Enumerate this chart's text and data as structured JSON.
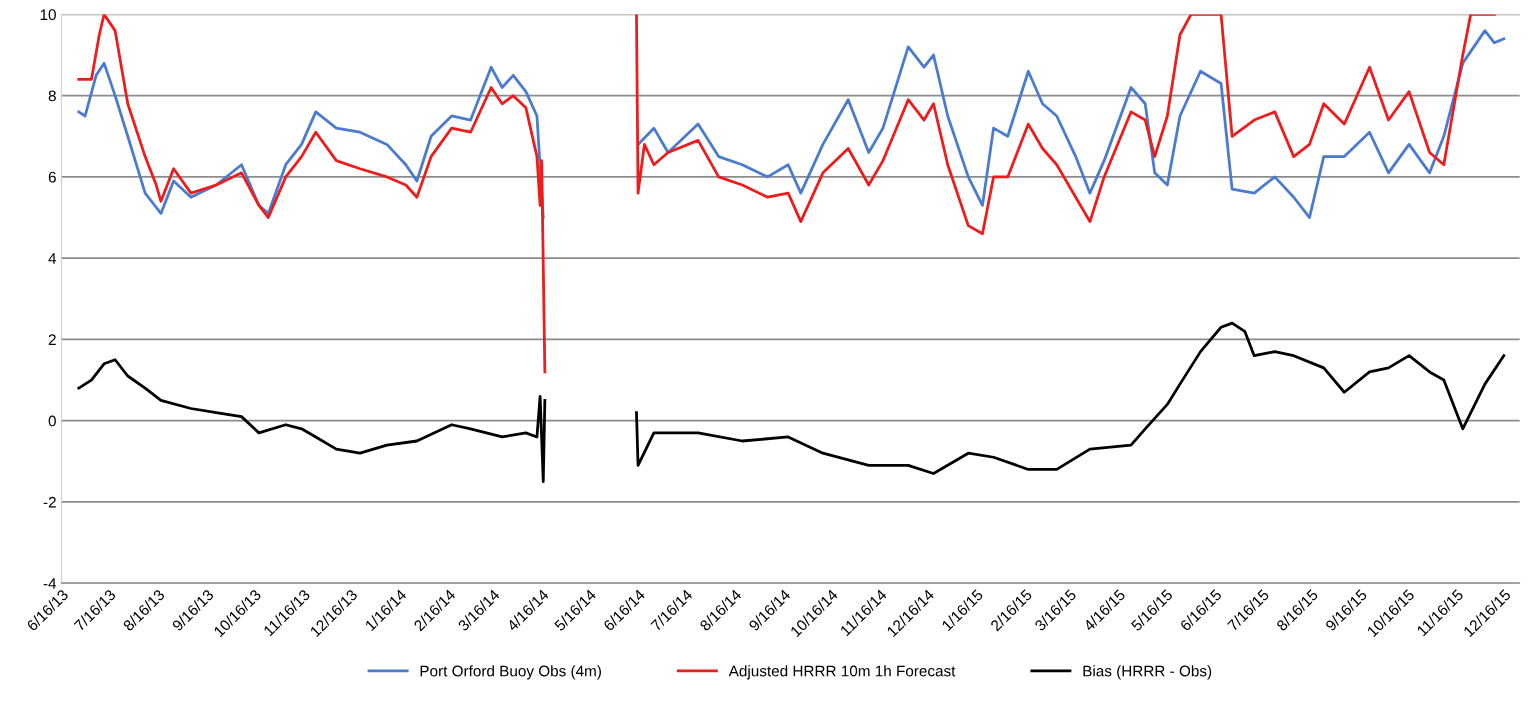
{
  "chart_data": {
    "type": "line",
    "xlim": [
      "2013-06-16",
      "2015-12-26"
    ],
    "xticks": [
      {
        "value": "2013-06-16",
        "label": "6/16/13"
      },
      {
        "value": "2013-07-16",
        "label": "7/16/13"
      },
      {
        "value": "2013-08-16",
        "label": "8/16/13"
      },
      {
        "value": "2013-09-16",
        "label": "9/16/13"
      },
      {
        "value": "2013-10-16",
        "label": "10/16/13"
      },
      {
        "value": "2013-11-16",
        "label": "11/16/13"
      },
      {
        "value": "2013-12-16",
        "label": "12/16/13"
      },
      {
        "value": "2014-01-16",
        "label": "1/16/14"
      },
      {
        "value": "2014-02-16",
        "label": "2/16/14"
      },
      {
        "value": "2014-03-16",
        "label": "3/16/14"
      },
      {
        "value": "2014-04-16",
        "label": "4/16/14"
      },
      {
        "value": "2014-05-16",
        "label": "5/16/14"
      },
      {
        "value": "2014-06-16",
        "label": "6/16/14"
      },
      {
        "value": "2014-07-16",
        "label": "7/16/14"
      },
      {
        "value": "2014-08-16",
        "label": "8/16/14"
      },
      {
        "value": "2014-09-16",
        "label": "9/16/14"
      },
      {
        "value": "2014-10-16",
        "label": "10/16/14"
      },
      {
        "value": "2014-11-16",
        "label": "11/16/14"
      },
      {
        "value": "2014-12-16",
        "label": "12/16/14"
      },
      {
        "value": "2015-01-16",
        "label": "1/16/15"
      },
      {
        "value": "2015-02-16",
        "label": "2/16/15"
      },
      {
        "value": "2015-03-16",
        "label": "3/16/15"
      },
      {
        "value": "2015-04-16",
        "label": "4/16/15"
      },
      {
        "value": "2015-05-16",
        "label": "5/16/15"
      },
      {
        "value": "2015-06-16",
        "label": "6/16/15"
      },
      {
        "value": "2015-07-16",
        "label": "7/16/15"
      },
      {
        "value": "2015-08-16",
        "label": "8/16/15"
      },
      {
        "value": "2015-09-16",
        "label": "9/16/15"
      },
      {
        "value": "2015-10-16",
        "label": "10/16/15"
      },
      {
        "value": "2015-11-16",
        "label": "11/16/15"
      },
      {
        "value": "2015-12-16",
        "label": "12/16/15"
      }
    ],
    "ylim": [
      -4,
      10
    ],
    "yticks": [
      -4,
      -2,
      0,
      2,
      4,
      6,
      8,
      10
    ],
    "grid": "y",
    "legend": "bottom",
    "marker": "none",
    "line_style": "solid",
    "series": [
      {
        "name": "Port Orford Buoy Obs (4m)",
        "color": "#4a7bd0",
        "x": [
          "2013-06-27",
          "2013-07-01",
          "2013-07-08",
          "2013-07-13",
          "2013-07-20",
          "2013-07-28",
          "2013-08-08",
          "2013-08-18",
          "2013-08-26",
          "2013-09-06",
          "2013-09-22",
          "2013-10-08",
          "2013-10-19",
          "2013-10-25",
          "2013-11-05",
          "2013-11-15",
          "2013-11-24",
          "2013-12-07",
          "2013-12-22",
          "2014-01-08",
          "2014-01-20",
          "2014-01-27",
          "2014-02-05",
          "2014-02-18",
          "2014-03-02",
          "2014-03-15",
          "2014-03-22",
          "2014-03-29",
          "2014-04-06",
          "2014-04-13",
          "2014-04-17",
          "2014-05-16",
          "2014-06-16",
          "2014-06-26",
          "2014-07-05",
          "2014-07-24",
          "2014-08-06",
          "2014-08-21",
          "2014-09-06",
          "2014-09-19",
          "2014-09-27",
          "2014-10-11",
          "2014-10-27",
          "2014-11-09",
          "2014-11-18",
          "2014-12-04",
          "2014-12-14",
          "2014-12-20",
          "2014-12-29",
          "2015-01-11",
          "2015-01-20",
          "2015-01-27",
          "2015-02-05",
          "2015-02-18",
          "2015-02-27",
          "2015-03-08",
          "2015-03-20",
          "2015-03-29",
          "2015-04-07",
          "2015-04-24",
          "2015-05-03",
          "2015-05-09",
          "2015-05-17",
          "2015-05-25",
          "2015-06-07",
          "2015-06-20",
          "2015-06-27",
          "2015-07-11",
          "2015-07-24",
          "2015-08-05",
          "2015-08-15",
          "2015-08-24",
          "2015-09-06",
          "2015-09-22",
          "2015-10-04",
          "2015-10-17",
          "2015-10-30",
          "2015-11-08",
          "2015-11-20",
          "2015-12-04",
          "2015-12-10",
          "2015-12-16"
        ],
        "values": [
          7.6,
          7.5,
          8.5,
          8.8,
          8.0,
          7.0,
          5.6,
          5.1,
          5.9,
          5.5,
          5.8,
          6.3,
          5.3,
          5.1,
          6.3,
          6.8,
          7.6,
          7.2,
          7.1,
          6.8,
          6.3,
          5.9,
          7.0,
          7.5,
          7.4,
          8.7,
          8.2,
          8.5,
          8.1,
          7.5,
          5.0,
          null,
          6.8,
          7.2,
          6.6,
          7.3,
          6.5,
          6.3,
          6.0,
          6.3,
          5.6,
          6.8,
          7.9,
          6.6,
          7.2,
          9.2,
          8.7,
          9.0,
          7.5,
          6.0,
          5.3,
          7.2,
          7.0,
          8.6,
          7.8,
          7.5,
          6.5,
          5.6,
          6.4,
          8.2,
          7.8,
          6.1,
          5.8,
          7.5,
          8.6,
          8.3,
          5.7,
          5.6,
          6.0,
          5.5,
          5.0,
          6.5,
          6.5,
          7.1,
          6.1,
          6.8,
          6.1,
          7.0,
          8.8,
          9.6,
          9.3,
          9.4
        ]
      },
      {
        "name": "Adjusted HRRR 10m 1h Forecast",
        "color": "#ee1c1c",
        "x": [
          "2013-06-27",
          "2013-07-05",
          "2013-07-10",
          "2013-07-13",
          "2013-07-20",
          "2013-07-28",
          "2013-08-08",
          "2013-08-15",
          "2013-08-18",
          "2013-08-26",
          "2013-09-06",
          "2013-09-22",
          "2013-10-08",
          "2013-10-19",
          "2013-10-25",
          "2013-11-05",
          "2013-11-15",
          "2013-11-24",
          "2013-12-07",
          "2013-12-22",
          "2014-01-08",
          "2014-01-20",
          "2014-01-27",
          "2014-02-05",
          "2014-02-18",
          "2014-03-02",
          "2014-03-15",
          "2014-03-22",
          "2014-03-29",
          "2014-04-06",
          "2014-04-13",
          "2014-04-15",
          "2014-04-16",
          "2014-04-18",
          "2014-05-16",
          "2014-06-15",
          "2014-06-16",
          "2014-06-20",
          "2014-06-26",
          "2014-07-05",
          "2014-07-24",
          "2014-08-06",
          "2014-08-21",
          "2014-09-06",
          "2014-09-19",
          "2014-09-27",
          "2014-10-11",
          "2014-10-27",
          "2014-11-09",
          "2014-11-18",
          "2014-12-04",
          "2014-12-14",
          "2014-12-20",
          "2014-12-29",
          "2015-01-11",
          "2015-01-20",
          "2015-01-27",
          "2015-02-05",
          "2015-02-18",
          "2015-02-27",
          "2015-03-08",
          "2015-03-20",
          "2015-03-29",
          "2015-04-07",
          "2015-04-24",
          "2015-05-03",
          "2015-05-09",
          "2015-05-17",
          "2015-05-25",
          "2015-06-01",
          "2015-06-20",
          "2015-06-27",
          "2015-07-11",
          "2015-07-24",
          "2015-08-05",
          "2015-08-15",
          "2015-08-24",
          "2015-09-06",
          "2015-09-22",
          "2015-10-04",
          "2015-10-17",
          "2015-10-30",
          "2015-11-08",
          "2015-11-20",
          "2015-11-25",
          "2015-12-04",
          "2015-12-10"
        ],
        "values": [
          8.4,
          8.4,
          9.5,
          10,
          9.6,
          7.8,
          6.5,
          5.8,
          5.4,
          6.2,
          5.6,
          5.8,
          6.1,
          5.3,
          5.0,
          6.0,
          6.5,
          7.1,
          6.4,
          6.2,
          6.0,
          5.8,
          5.5,
          6.5,
          7.2,
          7.1,
          8.2,
          7.8,
          8.0,
          7.7,
          6.5,
          5.3,
          6.4,
          1.2,
          null,
          10,
          5.6,
          6.8,
          6.3,
          6.6,
          6.9,
          6.0,
          5.8,
          5.5,
          5.6,
          4.9,
          6.1,
          6.7,
          5.8,
          6.4,
          7.9,
          7.4,
          7.8,
          6.3,
          4.8,
          4.6,
          6.0,
          6.0,
          7.3,
          6.7,
          6.3,
          5.5,
          4.9,
          6.0,
          7.6,
          7.4,
          6.5,
          7.5,
          9.5,
          10,
          10,
          7.0,
          7.4,
          7.6,
          6.5,
          6.8,
          7.8,
          7.3,
          8.7,
          7.4,
          8.1,
          6.6,
          6.3,
          9.0,
          10,
          10,
          10
        ]
      },
      {
        "name": "Bias (HRRR - Obs)",
        "color": "#000000",
        "x": [
          "2013-06-27",
          "2013-07-05",
          "2013-07-13",
          "2013-07-20",
          "2013-07-28",
          "2013-08-08",
          "2013-08-18",
          "2013-09-06",
          "2013-09-22",
          "2013-10-08",
          "2013-10-19",
          "2013-11-05",
          "2013-11-15",
          "2013-11-24",
          "2013-12-07",
          "2013-12-22",
          "2014-01-08",
          "2014-01-27",
          "2014-02-18",
          "2014-03-02",
          "2014-03-22",
          "2014-04-06",
          "2014-04-13",
          "2014-04-15",
          "2014-04-17",
          "2014-04-18",
          "2014-05-16",
          "2014-06-15",
          "2014-06-16",
          "2014-06-26",
          "2014-07-24",
          "2014-08-21",
          "2014-09-19",
          "2014-10-11",
          "2014-11-09",
          "2014-12-04",
          "2014-12-20",
          "2015-01-11",
          "2015-01-27",
          "2015-02-18",
          "2015-03-08",
          "2015-03-29",
          "2015-04-24",
          "2015-05-03",
          "2015-05-17",
          "2015-05-25",
          "2015-06-07",
          "2015-06-20",
          "2015-06-27",
          "2015-07-05",
          "2015-07-11",
          "2015-07-24",
          "2015-08-05",
          "2015-08-24",
          "2015-09-06",
          "2015-09-22",
          "2015-10-04",
          "2015-10-17",
          "2015-10-30",
          "2015-11-08",
          "2015-11-15",
          "2015-11-20",
          "2015-12-04",
          "2015-12-16"
        ],
        "values": [
          0.8,
          1.0,
          1.4,
          1.5,
          1.1,
          0.8,
          0.5,
          0.3,
          0.2,
          0.1,
          -0.3,
          -0.1,
          -0.2,
          -0.4,
          -0.7,
          -0.8,
          -0.6,
          -0.5,
          -0.1,
          -0.2,
          -0.4,
          -0.3,
          -0.4,
          0.6,
          -1.5,
          0.5,
          null,
          0.2,
          -1.1,
          -0.3,
          -0.3,
          -0.5,
          -0.4,
          -0.8,
          -1.1,
          -1.1,
          -1.3,
          -0.8,
          -0.9,
          -1.2,
          -1.2,
          -0.7,
          -0.6,
          -0.2,
          0.4,
          0.9,
          1.7,
          2.3,
          2.4,
          2.2,
          1.6,
          1.7,
          1.6,
          1.3,
          0.7,
          1.2,
          1.3,
          1.6,
          1.2,
          1.0,
          0.3,
          -0.2,
          0.9,
          1.6
        ]
      }
    ]
  }
}
